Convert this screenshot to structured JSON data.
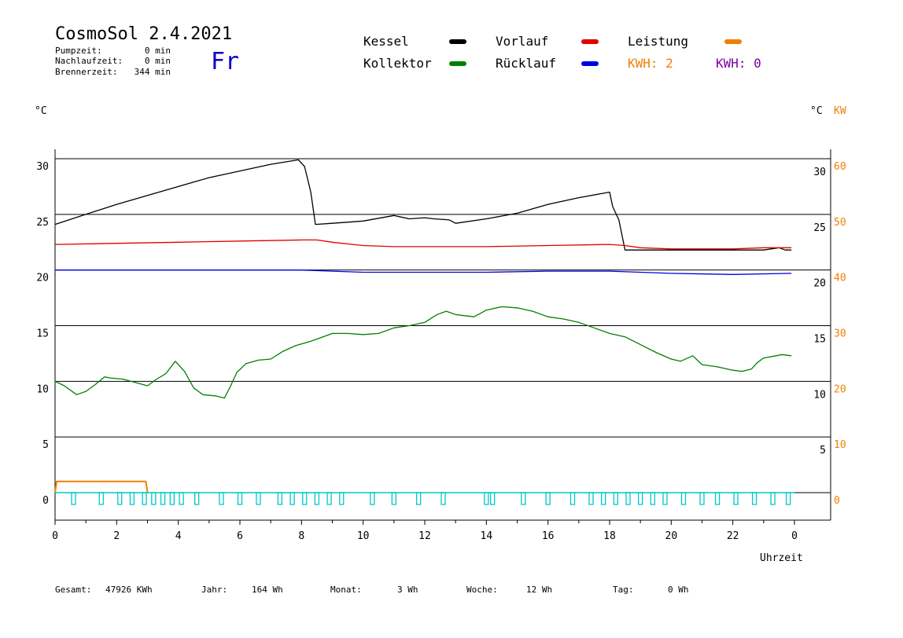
{
  "header": {
    "title": "CosmoSol 2.4.2021",
    "weekday": "Fr",
    "stats": [
      {
        "label": "Pumpzeit:",
        "value": "0 min"
      },
      {
        "label": "Nachlaufzeit:",
        "value": "0 min"
      },
      {
        "label": "Brennerzeit:",
        "value": "344 min"
      }
    ]
  },
  "legend": {
    "items": [
      {
        "label": "Kessel",
        "color": "#000000"
      },
      {
        "label": "Vorlauf",
        "color": "#e00000"
      },
      {
        "label": "Leistung",
        "color": "#f08000"
      },
      {
        "label": "Kollektor",
        "color": "#008000"
      },
      {
        "label": "Rücklauf",
        "color": "#0000e0"
      }
    ],
    "kwh": [
      {
        "text": "KWH: 2",
        "color": "#f08000"
      },
      {
        "text": "KWH: 0",
        "color": "#8000a0"
      }
    ]
  },
  "axes": {
    "left_unit": "°C",
    "right_unit": "°C",
    "right_unit2": "KW",
    "left_ticks": [
      "0",
      "5",
      "10",
      "15",
      "20",
      "25",
      "30"
    ],
    "right_ticks": [
      "5",
      "10",
      "15",
      "20",
      "25",
      "30"
    ],
    "kw_ticks": [
      "0",
      "10",
      "20",
      "30",
      "40",
      "50",
      "60"
    ],
    "x_ticks": [
      "0",
      "2",
      "4",
      "6",
      "8",
      "10",
      "12",
      "14",
      "16",
      "18",
      "20",
      "22",
      "0"
    ],
    "xlabel": "Uhrzeit"
  },
  "colors": {
    "kessel": "#000000",
    "vorlauf": "#e00000",
    "ruecklauf": "#0000e0",
    "kollektor": "#008000",
    "leistung": "#f08000",
    "pumpe": "#00c8c8",
    "kw_axis": "#f08000"
  },
  "footer": [
    {
      "label": "Gesamt:",
      "value": "47926 KWh"
    },
    {
      "label": "Jahr:",
      "value": "164 Wh"
    },
    {
      "label": "Monat:",
      "value": "3 Wh"
    },
    {
      "label": "Woche:",
      "value": "12 Wh"
    },
    {
      "label": "Tag:",
      "value": "0 Wh"
    }
  ],
  "chart_data": {
    "type": "line",
    "x_unit": "hour",
    "xlim": [
      0,
      24
    ],
    "ylim": [
      0,
      30
    ],
    "y2lim": [
      0,
      60
    ],
    "series": [
      {
        "name": "Kessel",
        "key": "kessel",
        "x": [
          0,
          1,
          2,
          3,
          4,
          5,
          6,
          7,
          7.9,
          8.1,
          8.3,
          8.45,
          9,
          10,
          11,
          11.5,
          12,
          12.3,
          12.8,
          13,
          14,
          15,
          16,
          17,
          18,
          18.1,
          18.3,
          18.5,
          19,
          20,
          21,
          22,
          23,
          23.5,
          23.7,
          23.9
        ],
        "y": [
          24.1,
          25,
          25.9,
          26.7,
          27.5,
          28.3,
          28.9,
          29.5,
          29.9,
          29.3,
          27,
          24.1,
          24.2,
          24.4,
          24.9,
          24.6,
          24.7,
          24.6,
          24.5,
          24.2,
          24.6,
          25.1,
          25.9,
          26.5,
          27,
          25.7,
          24.5,
          21.8,
          21.8,
          21.8,
          21.8,
          21.8,
          21.8,
          22,
          21.8,
          21.8
        ]
      },
      {
        "name": "Vorlauf",
        "key": "vorlauf",
        "x": [
          0,
          2,
          4,
          6,
          8,
          8.5,
          9,
          10,
          11,
          12,
          14,
          16,
          18,
          18.5,
          19,
          20,
          21,
          22,
          23,
          23.9
        ],
        "y": [
          22.3,
          22.4,
          22.5,
          22.6,
          22.7,
          22.7,
          22.5,
          22.2,
          22.1,
          22.1,
          22.1,
          22.2,
          22.3,
          22.2,
          22.0,
          21.9,
          21.9,
          21.9,
          22.0,
          22.0
        ]
      },
      {
        "name": "Rücklauf",
        "key": "ruecklauf",
        "x": [
          0,
          4,
          8,
          9,
          10,
          12,
          14,
          16,
          18,
          19,
          20,
          22,
          23.9
        ],
        "y": [
          20.0,
          20.0,
          20.0,
          19.9,
          19.8,
          19.8,
          19.8,
          19.9,
          19.9,
          19.8,
          19.7,
          19.6,
          19.7
        ]
      },
      {
        "name": "Kollektor",
        "key": "kollektor",
        "x": [
          0,
          0.3,
          0.7,
          1.0,
          1.3,
          1.6,
          1.8,
          2.2,
          2.6,
          3.0,
          3.3,
          3.6,
          3.9,
          4.2,
          4.5,
          4.8,
          5.2,
          5.5,
          5.7,
          5.9,
          6.2,
          6.6,
          7.0,
          7.4,
          7.8,
          8.3,
          8.6,
          9.0,
          9.5,
          10.0,
          10.5,
          11.0,
          11.5,
          12.0,
          12.4,
          12.7,
          13.0,
          13.3,
          13.6,
          14.0,
          14.5,
          15.0,
          15.5,
          16.0,
          16.5,
          17.0,
          17.5,
          18.0,
          18.5,
          19.0,
          19.5,
          20.0,
          20.3,
          20.7,
          21.0,
          21.5,
          22.0,
          22.3,
          22.6,
          22.8,
          23.0,
          23.4,
          23.6,
          23.9
        ],
        "y": [
          10.0,
          9.6,
          8.8,
          9.1,
          9.7,
          10.4,
          10.3,
          10.2,
          9.9,
          9.6,
          10.2,
          10.7,
          11.8,
          10.9,
          9.4,
          8.8,
          8.7,
          8.5,
          9.6,
          10.8,
          11.6,
          11.9,
          12.0,
          12.7,
          13.2,
          13.6,
          13.9,
          14.3,
          14.3,
          14.2,
          14.3,
          14.8,
          15.0,
          15.3,
          16.0,
          16.3,
          16.0,
          15.9,
          15.8,
          16.4,
          16.7,
          16.6,
          16.3,
          15.8,
          15.6,
          15.3,
          14.8,
          14.3,
          14.0,
          13.3,
          12.6,
          12.0,
          11.8,
          12.3,
          11.5,
          11.3,
          11.0,
          10.9,
          11.1,
          11.7,
          12.1,
          12.3,
          12.4,
          12.3
        ]
      },
      {
        "name": "Leistung",
        "key": "leistung",
        "axis": "y2",
        "x": [
          0,
          0.05,
          2.95,
          3.0
        ],
        "y": [
          0,
          2,
          2,
          0
        ]
      }
    ],
    "pump_ticks": [
      0.6,
      1.5,
      2.1,
      2.5,
      2.9,
      3.2,
      3.5,
      3.8,
      4.1,
      4.6,
      5.4,
      6.0,
      6.6,
      7.3,
      7.7,
      8.1,
      8.5,
      8.9,
      9.3,
      10.3,
      11.0,
      11.8,
      12.6,
      14.0,
      14.2,
      15.2,
      16.0,
      16.8,
      17.4,
      17.8,
      18.2,
      18.6,
      19.0,
      19.4,
      19.8,
      20.4,
      21.0,
      21.5,
      22.1,
      22.7,
      23.3,
      23.8
    ],
    "grid": true,
    "legend_position": "top"
  }
}
